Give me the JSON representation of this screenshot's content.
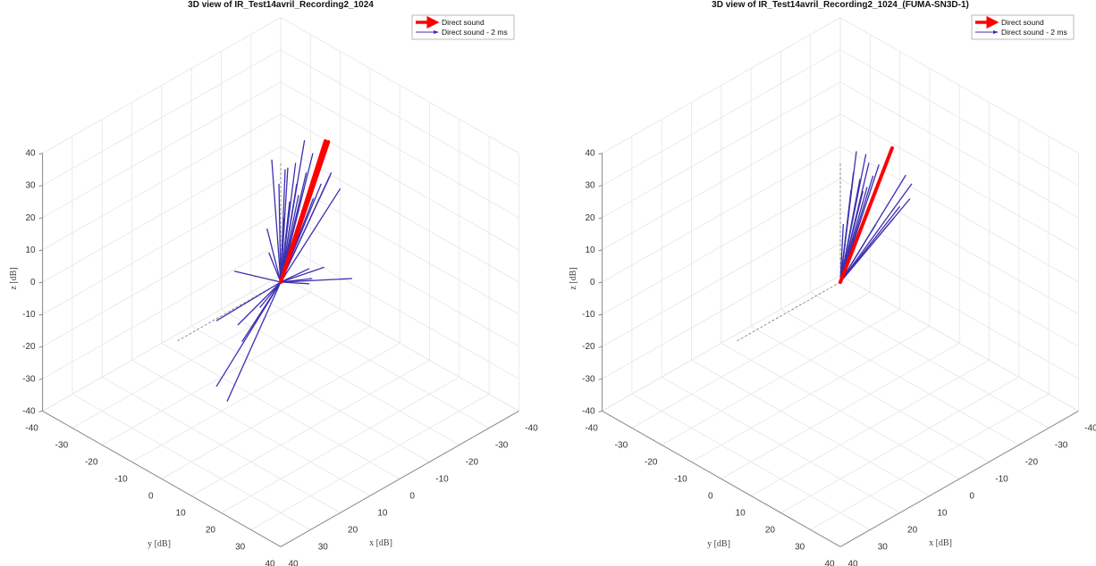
{
  "colors": {
    "direct": "#ff0000",
    "direct_2ms": "#3b2fb0",
    "grid": "#e6e6e6",
    "axis": "#888888",
    "reference": "#777777"
  },
  "chart_data": [
    {
      "type": "quiver3",
      "title": "3D view of IR_Test14avril_Recording2_1024",
      "xlabel": "x [dB]",
      "ylabel": "y [dB]",
      "zlabel": "z [dB]",
      "xlim": [
        -40,
        40
      ],
      "ylim": [
        -40,
        40
      ],
      "zlim": [
        -40,
        40
      ],
      "ticks": [
        "-40",
        "-30",
        "-20",
        "-10",
        "0",
        "10",
        "20",
        "30",
        "40"
      ],
      "grid": true,
      "legend": {
        "position": "top-right",
        "entries": [
          "Direct sound",
          "Direct sound - 2 ms"
        ]
      },
      "reference_axes": [
        [
          35,
          0,
          0
        ],
        [
          0,
          0,
          37
        ]
      ],
      "direct_sound": [
        [
          -7.5,
          7.5,
          43.8
        ],
        [
          -8,
          8,
          43.5
        ]
      ],
      "direct_sound_2ms": [
        [
          -4,
          4,
          44
        ],
        [
          1.5,
          -1.5,
          38
        ],
        [
          -5.4,
          5.4,
          40
        ],
        [
          -2.5,
          2.5,
          37
        ],
        [
          -1.2,
          1.2,
          35.5
        ],
        [
          -8.5,
          8.5,
          34
        ],
        [
          -8.3,
          8.3,
          33
        ],
        [
          -10,
          10,
          29
        ],
        [
          -4.3,
          4.3,
          34
        ],
        [
          2.3,
          -2.3,
          16.6
        ],
        [
          2,
          -2,
          9.2
        ],
        [
          -7.3,
          7.3,
          4.6
        ],
        [
          -12,
          12,
          1.1
        ],
        [
          -4.8,
          4.8,
          -0.5
        ],
        [
          7.8,
          -7.8,
          3.4
        ],
        [
          -5.3,
          5.3,
          1.1
        ],
        [
          -4.8,
          4.8,
          4.2
        ],
        [
          10.8,
          -10.8,
          -12
        ],
        [
          7.2,
          -7.2,
          -13.3
        ],
        [
          6.5,
          -6.5,
          -18.5
        ],
        [
          10.8,
          -10.8,
          -32.4
        ],
        [
          9,
          -9,
          -37
        ],
        [
          3.5,
          -3.5,
          -7.9
        ],
        [
          0.3,
          -0.3,
          30.5
        ],
        [
          -0.75,
          0.75,
          35
        ],
        [
          -2.7,
          2.7,
          30.5
        ],
        [
          -3.8,
          3.8,
          21
        ],
        [
          -6.8,
          6.8,
          30.5
        ],
        [
          -1.5,
          1.5,
          25
        ],
        [
          -3,
          3,
          27
        ],
        [
          -5.5,
          5.5,
          26
        ],
        [
          -0.5,
          0.5,
          20
        ]
      ]
    },
    {
      "type": "quiver3",
      "title": "3D view of IR_Test14avril_Recording2_1024_(FUMA-SN3D-1)",
      "xlabel": "x [dB]",
      "ylabel": "y [dB]",
      "zlabel": "z [dB]",
      "xlim": [
        -40,
        40
      ],
      "ylim": [
        -40,
        40
      ],
      "zlim": [
        -40,
        40
      ],
      "ticks": [
        "-40",
        "-30",
        "-20",
        "-10",
        "0",
        "10",
        "20",
        "30",
        "40"
      ],
      "grid": true,
      "legend": {
        "position": "top-right",
        "entries": [
          "Direct sound",
          "Direct sound - 2 ms"
        ]
      },
      "reference_axes": [
        [
          35,
          0,
          0
        ],
        [
          0,
          0,
          37
        ]
      ],
      "direct_sound": [
        [
          -8.7,
          8.7,
          41.6
        ]
      ],
      "direct_sound_2ms": [
        [
          -2.7,
          2.7,
          40.6
        ],
        [
          -4.3,
          4.3,
          39.7
        ],
        [
          -4.8,
          4.8,
          37
        ],
        [
          -3.3,
          3.3,
          32
        ],
        [
          -1.8,
          1.8,
          28.6
        ],
        [
          -6.5,
          6.5,
          36.5
        ],
        [
          -11,
          11,
          33.2
        ],
        [
          -12,
          12,
          30.5
        ],
        [
          -11.7,
          11.7,
          25.9
        ],
        [
          -10,
          10,
          23.5
        ],
        [
          -4.5,
          4.5,
          29.5
        ],
        [
          -1.5,
          1.5,
          22.6
        ],
        [
          -6,
          6,
          18
        ],
        [
          -9,
          9,
          19.9
        ],
        [
          -0.5,
          0.5,
          18
        ],
        [
          -3.8,
          3.8,
          28.2
        ],
        [
          -2.2,
          2.2,
          34
        ],
        [
          -5.5,
          5.5,
          33
        ]
      ]
    }
  ]
}
